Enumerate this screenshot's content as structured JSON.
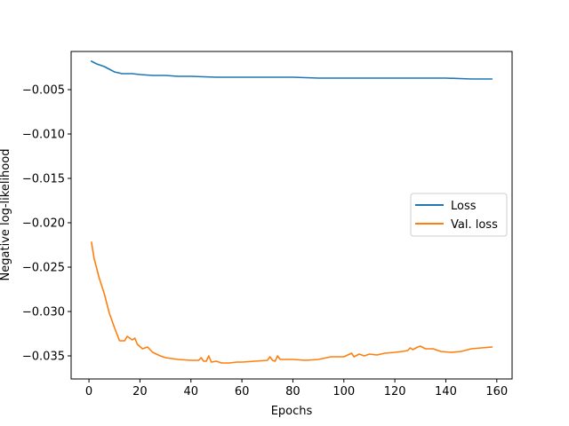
{
  "chart_data": {
    "type": "line",
    "title": "",
    "xlabel": "Epochs",
    "ylabel": "Negative log-likelihood",
    "xlim": [
      -7,
      166
    ],
    "ylim": [
      -0.0376,
      -0.0007
    ],
    "xticks": [
      0,
      20,
      40,
      60,
      80,
      100,
      120,
      140,
      160
    ],
    "yticks": [
      -0.005,
      -0.01,
      -0.015,
      -0.02,
      -0.025,
      -0.03,
      -0.035
    ],
    "ytick_labels": [
      "−0.005",
      "−0.010",
      "−0.015",
      "−0.020",
      "−0.025",
      "−0.030",
      "−0.035"
    ],
    "grid": false,
    "legend_position": "center-right",
    "series": [
      {
        "name": "Loss",
        "color": "#1f77b4",
        "points": [
          [
            1,
            -0.0018
          ],
          [
            3,
            -0.0021
          ],
          [
            6,
            -0.0024
          ],
          [
            8,
            -0.0027
          ],
          [
            10,
            -0.003
          ],
          [
            13,
            -0.0032
          ],
          [
            17,
            -0.0032
          ],
          [
            20,
            -0.0033
          ],
          [
            25,
            -0.0034
          ],
          [
            30,
            -0.0034
          ],
          [
            35,
            -0.0035
          ],
          [
            40,
            -0.0035
          ],
          [
            50,
            -0.0036
          ],
          [
            60,
            -0.0036
          ],
          [
            70,
            -0.0036
          ],
          [
            80,
            -0.0036
          ],
          [
            90,
            -0.0037
          ],
          [
            100,
            -0.0037
          ],
          [
            110,
            -0.0037
          ],
          [
            120,
            -0.0037
          ],
          [
            130,
            -0.0037
          ],
          [
            140,
            -0.0037
          ],
          [
            150,
            -0.0038
          ],
          [
            158,
            -0.0038
          ]
        ]
      },
      {
        "name": "Val. loss",
        "color": "#ff7f0e",
        "points": [
          [
            1,
            -0.0222
          ],
          [
            2,
            -0.024
          ],
          [
            4,
            -0.0262
          ],
          [
            6,
            -0.028
          ],
          [
            8,
            -0.0302
          ],
          [
            10,
            -0.0318
          ],
          [
            12,
            -0.0333
          ],
          [
            14,
            -0.0333
          ],
          [
            15,
            -0.0328
          ],
          [
            17,
            -0.0332
          ],
          [
            18,
            -0.033
          ],
          [
            19,
            -0.0337
          ],
          [
            21,
            -0.0342
          ],
          [
            23,
            -0.034
          ],
          [
            25,
            -0.0346
          ],
          [
            28,
            -0.035
          ],
          [
            30,
            -0.0352
          ],
          [
            35,
            -0.0354
          ],
          [
            40,
            -0.0355
          ],
          [
            43,
            -0.0355
          ],
          [
            44,
            -0.0352
          ],
          [
            45,
            -0.0356
          ],
          [
            46,
            -0.0356
          ],
          [
            47,
            -0.035
          ],
          [
            48,
            -0.0357
          ],
          [
            50,
            -0.0356
          ],
          [
            52,
            -0.0358
          ],
          [
            55,
            -0.0358
          ],
          [
            58,
            -0.0357
          ],
          [
            60,
            -0.0357
          ],
          [
            65,
            -0.0356
          ],
          [
            70,
            -0.0355
          ],
          [
            71,
            -0.0351
          ],
          [
            72,
            -0.0355
          ],
          [
            73,
            -0.0356
          ],
          [
            74,
            -0.035
          ],
          [
            75,
            -0.0354
          ],
          [
            80,
            -0.0354
          ],
          [
            85,
            -0.0355
          ],
          [
            90,
            -0.0354
          ],
          [
            95,
            -0.0351
          ],
          [
            100,
            -0.0351
          ],
          [
            103,
            -0.0347
          ],
          [
            104,
            -0.0351
          ],
          [
            106,
            -0.0348
          ],
          [
            108,
            -0.035
          ],
          [
            110,
            -0.0348
          ],
          [
            113,
            -0.0349
          ],
          [
            116,
            -0.0347
          ],
          [
            120,
            -0.0346
          ],
          [
            123,
            -0.0345
          ],
          [
            125,
            -0.0344
          ],
          [
            126,
            -0.0341
          ],
          [
            127,
            -0.0343
          ],
          [
            129,
            -0.034
          ],
          [
            130,
            -0.0339
          ],
          [
            132,
            -0.0342
          ],
          [
            135,
            -0.0342
          ],
          [
            138,
            -0.0345
          ],
          [
            142,
            -0.0346
          ],
          [
            146,
            -0.0345
          ],
          [
            150,
            -0.0342
          ],
          [
            154,
            -0.0341
          ],
          [
            158,
            -0.034
          ]
        ]
      }
    ]
  }
}
